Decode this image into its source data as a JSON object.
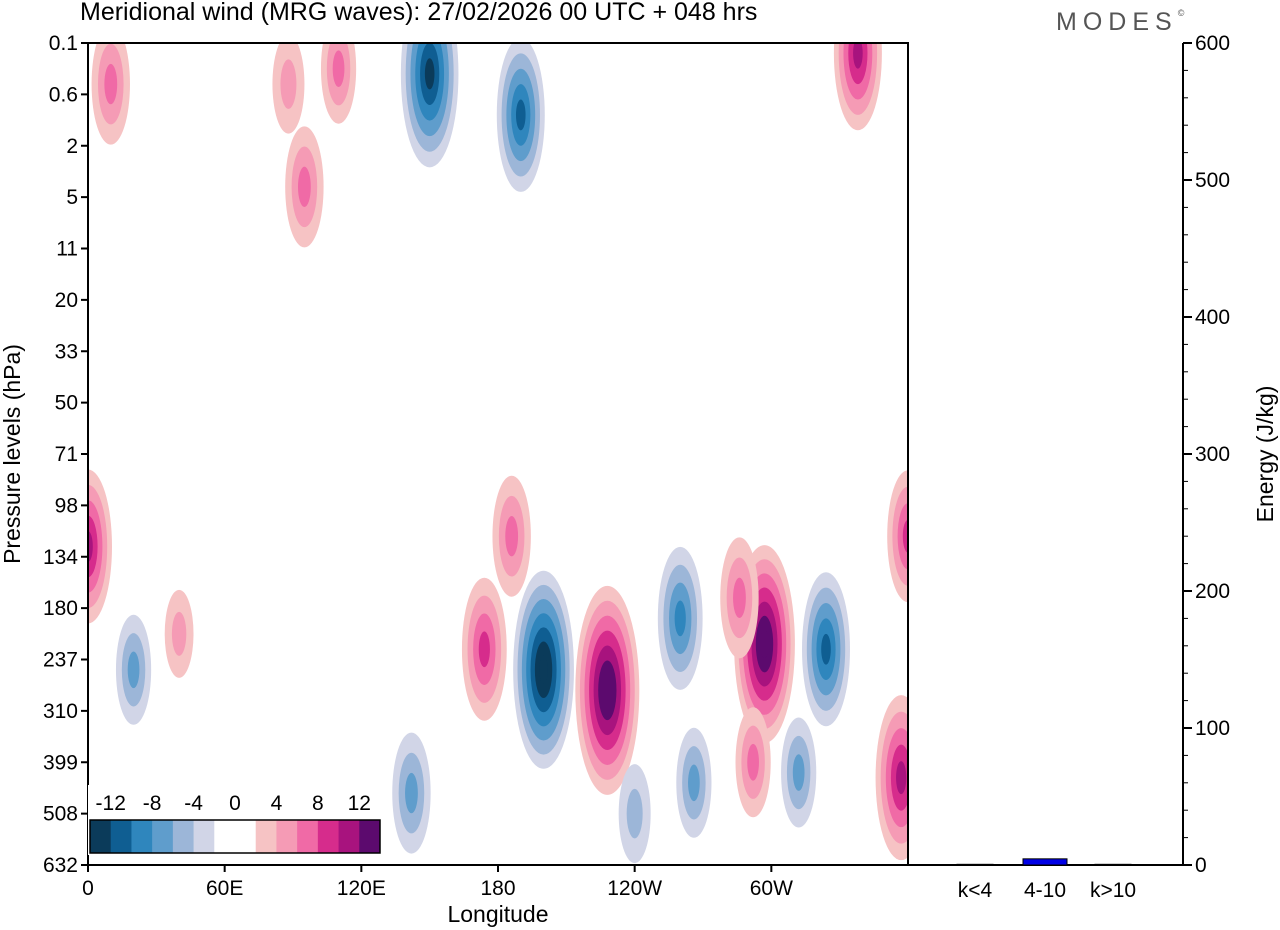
{
  "header": {
    "title": "Meridional wind (MRG waves):  27/02/2026  00 UTC  + 048 hrs",
    "brand": "MODES",
    "brand_mark": "©"
  },
  "colors": {
    "negative": [
      "#0b3b5a",
      "#0f5e92",
      "#2f86bd",
      "#5f9dcc",
      "#9cb6d8",
      "#d1d5e7"
    ],
    "neutral": "#ffffff",
    "positive": [
      "#f6c3c4",
      "#f59bb5",
      "#f06aa6",
      "#d62c8c",
      "#a8137e",
      "#5c0a6e"
    ],
    "energy_bar": "#0000e6"
  },
  "chart_data": [
    {
      "type": "heatmap",
      "title": "Meridional wind (MRG waves):  27/02/2026  00 UTC  + 048 hrs",
      "xlabel": "Longitude",
      "ylabel": "Pressure levels (hPa)",
      "x_ticks": [
        "0",
        "60E",
        "120E",
        "180",
        "120W",
        "60W"
      ],
      "y_ticks": [
        "0.1",
        "0.6",
        "2",
        "5",
        "11",
        "20",
        "33",
        "50",
        "71",
        "98",
        "134",
        "180",
        "237",
        "310",
        "399",
        "508",
        "632"
      ],
      "colorbar": {
        "levels": [
          -14,
          -12,
          -10,
          -8,
          -6,
          -4,
          -2,
          2,
          4,
          6,
          8,
          10,
          12,
          14
        ],
        "tick_labels": [
          "-12",
          "-8",
          "-4",
          "0",
          "4",
          "8",
          "12"
        ]
      },
      "features": [
        {
          "lon": 200,
          "level_index": 12.2,
          "value": -14
        },
        {
          "lon": 228,
          "level_index": 12.6,
          "value": 15
        },
        {
          "lon": 260,
          "level_index": 11.2,
          "value": -9
        },
        {
          "lon": 297,
          "level_index": 11.7,
          "value": 14
        },
        {
          "lon": 324,
          "level_index": 11.8,
          "value": -10
        },
        {
          "lon": 174,
          "level_index": 11.8,
          "value": 9
        },
        {
          "lon": 286,
          "level_index": 10.8,
          "value": 7
        },
        {
          "lon": 186,
          "level_index": 9.6,
          "value": 7
        },
        {
          "lon": 150,
          "level_index": 0.6,
          "value": -13
        },
        {
          "lon": 190,
          "level_index": 1.4,
          "value": -10
        },
        {
          "lon": 10,
          "level_index": 0.8,
          "value": 7
        },
        {
          "lon": 338,
          "level_index": 0.2,
          "value": 10
        },
        {
          "lon": 110,
          "level_index": 0.5,
          "value": 6
        },
        {
          "lon": 88,
          "level_index": 0.8,
          "value": 5
        },
        {
          "lon": 95,
          "level_index": 2.8,
          "value": 7
        },
        {
          "lon": 0,
          "level_index": 9.8,
          "value": 10
        },
        {
          "lon": 360,
          "level_index": 9.6,
          "value": 8
        },
        {
          "lon": 357,
          "level_index": 14.3,
          "value": 11
        },
        {
          "lon": 20,
          "level_index": 12.2,
          "value": -6
        },
        {
          "lon": 142,
          "level_index": 14.6,
          "value": -7
        },
        {
          "lon": 240,
          "level_index": 15.0,
          "value": -5
        },
        {
          "lon": 266,
          "level_index": 14.4,
          "value": -6
        },
        {
          "lon": 292,
          "level_index": 14.0,
          "value": 6
        },
        {
          "lon": 312,
          "level_index": 14.2,
          "value": -6
        },
        {
          "lon": 40,
          "level_index": 11.5,
          "value": 4
        }
      ]
    },
    {
      "type": "bar",
      "categories": [
        "k<4",
        "4-10",
        "k>10"
      ],
      "values": [
        0.5,
        4.5,
        0.5
      ],
      "ylabel": "Energy (J/kg)",
      "ylim": [
        0,
        600
      ],
      "y_ticks": [
        "0",
        "100",
        "200",
        "300",
        "400",
        "500",
        "600"
      ]
    }
  ]
}
